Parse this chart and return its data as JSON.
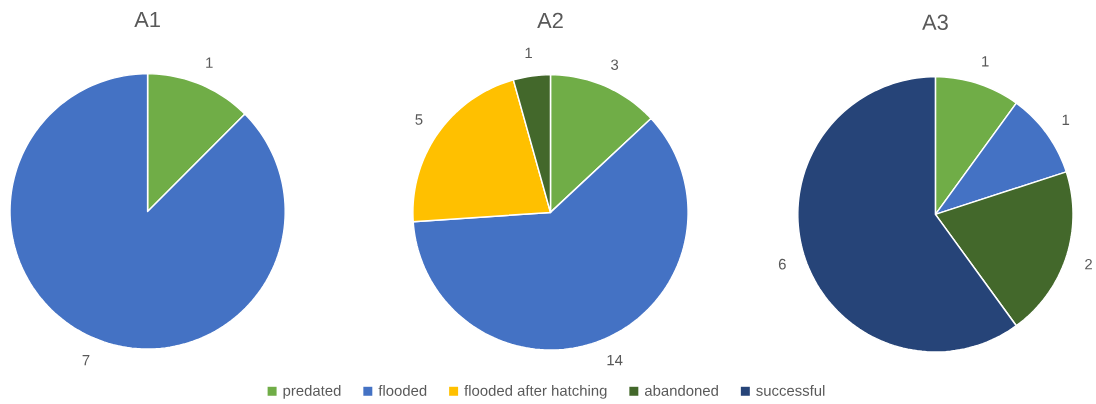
{
  "chart_data": [
    {
      "type": "pie",
      "title": "A1",
      "values": [
        1,
        7
      ],
      "colors": [
        "#70ad47",
        "#4472c4"
      ],
      "data_labels": true,
      "legend": false
    },
    {
      "type": "pie",
      "title": "A2",
      "categories": [
        "predated",
        "flooded",
        "flooded after hatching",
        "abandoned",
        "successful"
      ],
      "values": [
        3,
        14,
        5,
        1,
        null
      ],
      "colors": [
        "#70ad47",
        "#4472c4",
        "#ffc000",
        "#43682b",
        "#264478"
      ],
      "data_labels": true,
      "legend": "bottom"
    },
    {
      "type": "pie",
      "title": "A3",
      "values": [
        1,
        1,
        2,
        6
      ],
      "colors": [
        "#70ad47",
        "#4472c4",
        "#43682b",
        "#264478"
      ],
      "data_labels": true,
      "legend": false
    }
  ]
}
